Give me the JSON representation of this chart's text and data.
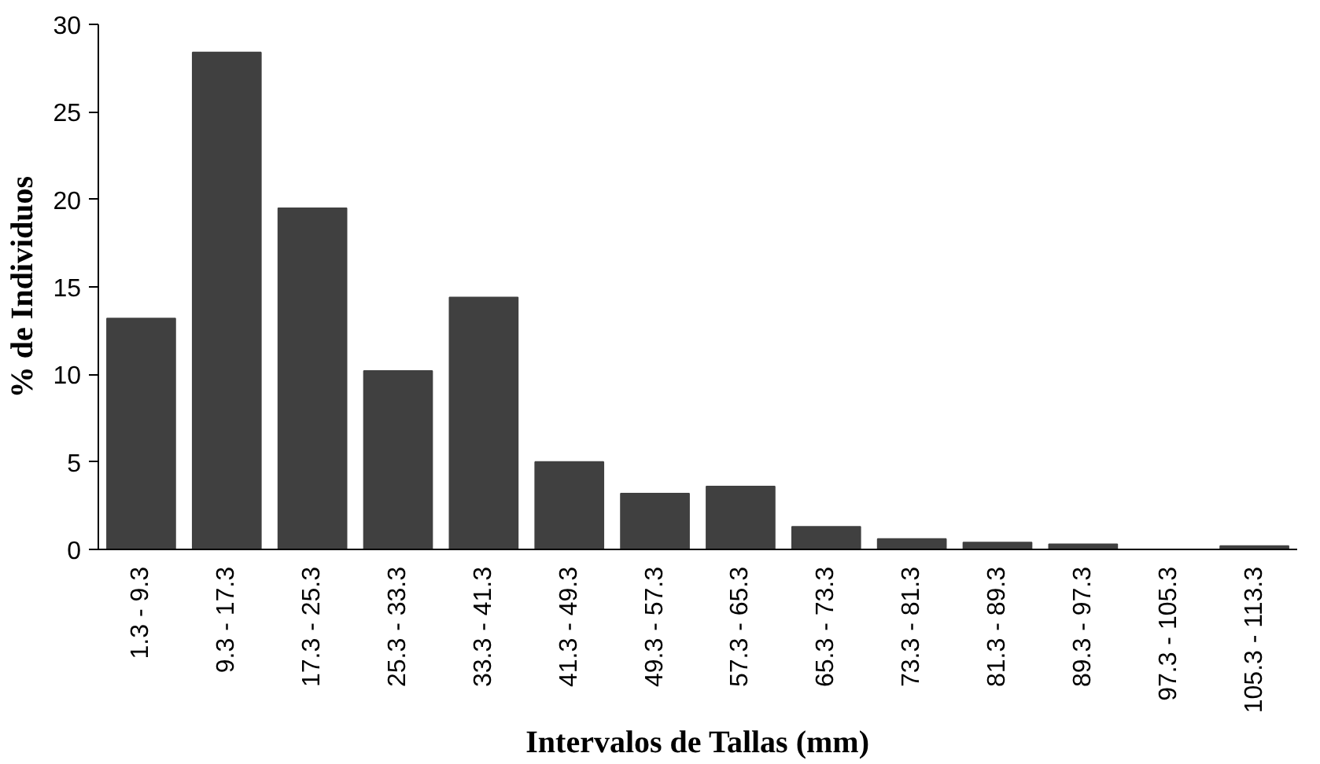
{
  "chart_data": {
    "type": "bar",
    "xlabel": "Intervalos de Tallas (mm)",
    "ylabel": "% de Individuos",
    "categories": [
      "1.3 - 9.3",
      "9.3 - 17.3",
      "17.3 - 25.3",
      "25.3 - 33.3",
      "33.3 - 41.3",
      "41.3 - 49.3",
      "49.3 - 57.3",
      "57.3 - 65.3",
      "65.3 - 73.3",
      "73.3 - 81.3",
      "81.3 - 89.3",
      "89.3 - 97.3",
      "97.3 - 105.3",
      "105.3 - 113.3"
    ],
    "values": [
      13.2,
      28.4,
      19.5,
      10.2,
      14.4,
      5.0,
      3.2,
      3.6,
      1.3,
      0.6,
      0.4,
      0.3,
      0,
      0.2
    ],
    "color": "#404040",
    "ylim": [
      0,
      30
    ],
    "yticks": [
      0,
      5,
      10,
      15,
      20,
      25,
      30
    ],
    "grid": false
  }
}
